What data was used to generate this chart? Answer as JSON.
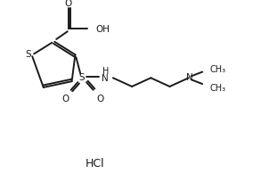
{
  "bg_color": "#ffffff",
  "line_color": "#1a1a1a",
  "line_width": 1.4,
  "hcl_text": "HCl",
  "oh_text": "OH",
  "h_text": "H",
  "n_text": "N",
  "s_text": "S",
  "o_text": "O",
  "figw": 3.02,
  "figh": 2.05,
  "dpi": 100
}
